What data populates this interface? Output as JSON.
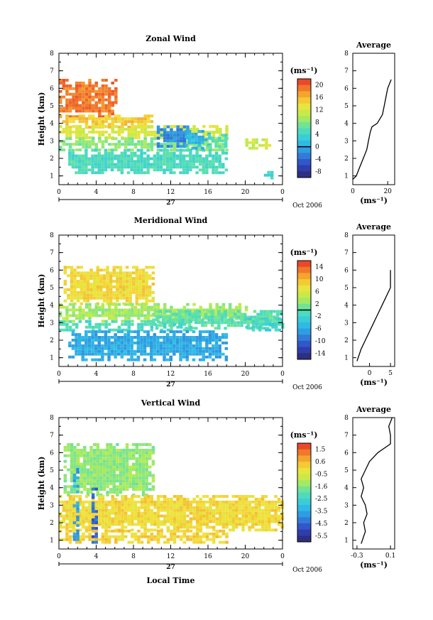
{
  "chart_data": [
    {
      "type": "heatmap",
      "title": "Zonal Wind",
      "ylabel": "Height (km)",
      "unit": "(ms⁻¹)",
      "xlim": [
        0,
        24
      ],
      "ylim": [
        0.5,
        8
      ],
      "x_ticks": [
        "0",
        "4",
        "8",
        "12",
        "16",
        "20",
        "0"
      ],
      "y_ticks": [
        "1",
        "2",
        "3",
        "4",
        "5",
        "6",
        "7",
        "8"
      ],
      "date_label": "27",
      "month_label": "Oct 2006",
      "colorbar": {
        "ticks": [
          "20",
          "16",
          "12",
          "8",
          "4",
          "0",
          "-4",
          "-8"
        ],
        "range": [
          -10,
          22
        ],
        "contour": 0
      },
      "regions": [
        {
          "t0": 0,
          "t1": 6,
          "h0": 4.3,
          "h1": 6.4,
          "v": 19
        },
        {
          "t0": 0,
          "t1": 10,
          "h0": 3.7,
          "h1": 4.5,
          "v": 15
        },
        {
          "t0": 0,
          "t1": 18,
          "h0": 3.1,
          "h1": 3.8,
          "v": 12
        },
        {
          "t0": 0,
          "t1": 18,
          "h0": 2.4,
          "h1": 3.1,
          "v": 8
        },
        {
          "t0": 1,
          "t1": 18,
          "h0": 1.1,
          "h1": 2.4,
          "v": 5
        },
        {
          "t0": 10.5,
          "t1": 13.8,
          "h0": 2.6,
          "h1": 3.8,
          "v": -2
        },
        {
          "t0": 13.5,
          "t1": 16,
          "h0": 2.5,
          "h1": 3.6,
          "v": 1
        },
        {
          "t0": 16,
          "t1": 18,
          "h0": 2.6,
          "h1": 3.3,
          "v": 5
        },
        {
          "t0": 20,
          "t1": 22.5,
          "h0": 2.5,
          "h1": 3.0,
          "v": 11
        },
        {
          "t0": 22,
          "t1": 23,
          "h0": 0.8,
          "h1": 1.2,
          "v": 4
        }
      ],
      "average_profile": {
        "title": "Average",
        "xlabel": "(ms⁻¹)",
        "xlim": [
          0,
          24
        ],
        "x_ticks": [
          "0",
          "20"
        ],
        "h": [
          0.8,
          1.0,
          1.5,
          2.0,
          2.5,
          3.0,
          3.5,
          3.8,
          4.0,
          4.5,
          5.0,
          5.5,
          6.0,
          6.5
        ],
        "v": [
          0,
          2,
          4,
          6,
          8,
          9,
          10,
          11,
          14,
          17,
          18,
          19,
          20,
          22
        ]
      }
    },
    {
      "type": "heatmap",
      "title": "Meridional Wind",
      "ylabel": "Height (km)",
      "unit": "(ms⁻¹)",
      "xlim": [
        0,
        24
      ],
      "ylim": [
        0.5,
        8
      ],
      "x_ticks": [
        "0",
        "4",
        "8",
        "12",
        "16",
        "20",
        "0"
      ],
      "y_ticks": [
        "1",
        "2",
        "3",
        "4",
        "5",
        "6",
        "7",
        "8"
      ],
      "date_label": "27",
      "month_label": "Oct 2006",
      "colorbar": {
        "ticks": [
          "14",
          "10",
          "6",
          "2",
          "-2",
          "-6",
          "-10",
          "-14"
        ],
        "range": [
          -16,
          16
        ],
        "contour": 0
      },
      "regions": [
        {
          "t0": 0.5,
          "t1": 10,
          "h0": 4.0,
          "h1": 6.1,
          "v": 8
        },
        {
          "t0": 0,
          "t1": 20,
          "h0": 3.0,
          "h1": 4.1,
          "v": 3
        },
        {
          "t0": 10,
          "t1": 24,
          "h0": 2.6,
          "h1": 3.6,
          "v": 0
        },
        {
          "t0": 0,
          "t1": 14,
          "h0": 2.5,
          "h1": 3.0,
          "v": -1
        },
        {
          "t0": 1,
          "t1": 18,
          "h0": 0.8,
          "h1": 2.5,
          "v": -6
        },
        {
          "t0": 20,
          "t1": 24,
          "h0": 2.5,
          "h1": 3.2,
          "v": -2
        }
      ],
      "average_profile": {
        "title": "Average",
        "xlabel": "(ms⁻¹)",
        "xlim": [
          -4,
          6
        ],
        "x_ticks": [
          "0",
          "5"
        ],
        "h": [
          0.8,
          1.5,
          2.0,
          2.5,
          3.0,
          3.5,
          4.0,
          4.5,
          5.0,
          5.5,
          6.0
        ],
        "v": [
          -3,
          -2,
          -1,
          0,
          1,
          2,
          3,
          4,
          5,
          5,
          5
        ]
      }
    },
    {
      "type": "heatmap",
      "title": "Vertical Wind",
      "ylabel": "Height (km)",
      "xlabel": "Local Time",
      "unit": "(ms⁻¹)",
      "xlim": [
        0,
        24
      ],
      "ylim": [
        0.5,
        8
      ],
      "x_ticks": [
        "0",
        "4",
        "8",
        "12",
        "16",
        "20",
        "0"
      ],
      "y_ticks": [
        "1",
        "2",
        "3",
        "4",
        "5",
        "6",
        "7",
        "8"
      ],
      "date_label": "27",
      "month_label": "Oct 2006",
      "colorbar": {
        "ticks": [
          "1.5",
          "0.6",
          "-0.5",
          "-1.6",
          "-2.5",
          "-3.5",
          "-4.5",
          "-5.5"
        ],
        "range": [
          -6,
          2.4
        ]
      },
      "regions": [
        {
          "t0": 0.5,
          "t1": 10,
          "h0": 3.5,
          "h1": 6.5,
          "v": -1.2
        },
        {
          "t0": 0,
          "t1": 24,
          "h0": 1.5,
          "h1": 3.5,
          "v": 0.3
        },
        {
          "t0": 0,
          "t1": 18,
          "h0": 0.8,
          "h1": 1.5,
          "v": 0.4
        },
        {
          "t0": 1.5,
          "t1": 2.0,
          "h0": 0.8,
          "h1": 5.0,
          "v": -3.5
        },
        {
          "t0": 3.5,
          "t1": 4.0,
          "h0": 0.8,
          "h1": 4.0,
          "v": -4.5
        }
      ],
      "average_profile": {
        "title": "Average",
        "xlabel": "(ms⁻¹)",
        "xlim": [
          -0.35,
          0.15
        ],
        "x_ticks": [
          "-0.3",
          "0.1"
        ],
        "h": [
          0.8,
          1.5,
          2.0,
          2.5,
          3.0,
          3.5,
          4.0,
          4.5,
          5.0,
          5.5,
          6.0,
          6.5,
          7.0,
          7.5,
          8.0
        ],
        "v": [
          -0.25,
          -0.2,
          -0.22,
          -0.18,
          -0.2,
          -0.25,
          -0.22,
          -0.25,
          -0.2,
          -0.15,
          -0.05,
          0.1,
          0.1,
          0.08,
          0.12
        ]
      }
    }
  ]
}
